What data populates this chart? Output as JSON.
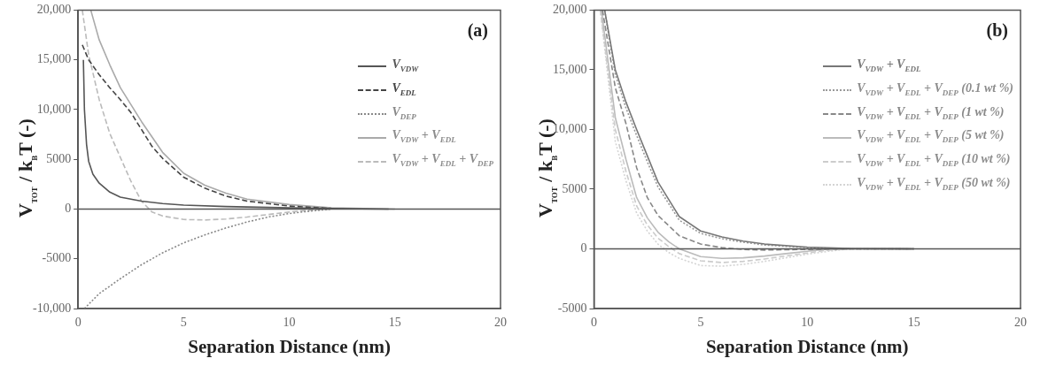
{
  "chart_data": [
    {
      "type": "line",
      "annotations": [
        "(a)"
      ],
      "xlabel": "Separation Distance (nm)",
      "ylabel": "V$_{TOT}$ / k$_{B}$T (-)",
      "xlim": [
        0,
        20
      ],
      "xticks": [
        0,
        5,
        10,
        15,
        20
      ],
      "ylim": [
        -10000,
        20000
      ],
      "yticks": [
        {
          "value": -10000,
          "label": "-10,000"
        },
        -5000,
        0,
        5000,
        {
          "value": 10000,
          "label": "10,000"
        },
        {
          "value": 15000,
          "label": "15,000"
        },
        {
          "value": 20000,
          "label": "20,000"
        }
      ],
      "legend": "top right",
      "grid": false,
      "marker": "none",
      "ref_lines": [
        {
          "axis": "y",
          "value": 0,
          "color": "#555555"
        }
      ],
      "series": [
        {
          "name": "V$_{VDW}$",
          "color": "#555555",
          "line_style": "solid",
          "x": [
            0.25,
            0.3,
            0.4,
            0.5,
            0.7,
            1,
            1.5,
            2,
            3,
            4,
            5,
            7,
            10,
            12,
            14.7
          ],
          "values": [
            15000,
            10000,
            6500,
            4800,
            3500,
            2600,
            1700,
            1200,
            800,
            550,
            400,
            250,
            120,
            50,
            0
          ]
        },
        {
          "name": "V$_{EDL}$",
          "color": "#444444",
          "line_style": "dashed",
          "x": [
            0.2,
            0.5,
            1,
            1.5,
            2,
            2.5,
            3,
            3.5,
            4,
            5,
            6,
            7,
            8,
            10,
            12
          ],
          "values": [
            16500,
            15000,
            13500,
            12200,
            11000,
            9700,
            8000,
            6300,
            5100,
            3200,
            2100,
            1300,
            800,
            300,
            60
          ]
        },
        {
          "name": "V$_{DEP}$",
          "color": "#888888",
          "line_style": "dotted",
          "x": [
            0.3,
            1,
            2,
            3,
            4,
            5,
            6,
            7,
            8,
            9,
            10,
            11,
            12
          ],
          "values": [
            -10000,
            -8500,
            -7000,
            -5600,
            -4400,
            -3400,
            -2600,
            -1900,
            -1300,
            -800,
            -450,
            -200,
            0
          ]
        },
        {
          "name": "V$_{VDW}$ + V$_{EDL}$",
          "color": "#aaaaaa",
          "line_style": "solid",
          "x": [
            0.6,
            1,
            1.5,
            2,
            3,
            4,
            5,
            6,
            7,
            8,
            10,
            12,
            15
          ],
          "values": [
            20000,
            17000,
            14500,
            12200,
            8800,
            5700,
            3600,
            2400,
            1600,
            1000,
            450,
            120,
            0
          ]
        },
        {
          "name": "V$_{VDW}$ + V$_{EDL}$ + V$_{DEP}$",
          "color": "#bbbbbb",
          "line_style": "dashed",
          "x": [
            0.2,
            0.5,
            1,
            1.5,
            2,
            2.5,
            3,
            3.5,
            4,
            5,
            6,
            7,
            8,
            9,
            10,
            11,
            12
          ],
          "values": [
            20000,
            15500,
            11000,
            7600,
            5200,
            2800,
            800,
            -300,
            -700,
            -1050,
            -1100,
            -1000,
            -800,
            -550,
            -300,
            -100,
            0
          ]
        }
      ]
    },
    {
      "type": "line",
      "annotations": [
        "(b)"
      ],
      "xlabel": "Separation Distance (nm)",
      "ylabel": "V$_{TOT}$ / k$_{B}$T (-)",
      "xlim": [
        0,
        20
      ],
      "xticks": [
        0,
        5,
        10,
        15,
        20
      ],
      "ylim": [
        -5000,
        20000
      ],
      "yticks": [
        -5000,
        0,
        5000,
        {
          "value": 10000,
          "label": "10,000"
        },
        {
          "value": 15000,
          "label": "15,000"
        },
        {
          "value": 20000,
          "label": "20,000"
        }
      ],
      "legend": "top right",
      "grid": false,
      "marker": "none",
      "ref_lines": [
        {
          "axis": "y",
          "value": 0,
          "color": "#555555"
        }
      ],
      "series": [
        {
          "name": "V$_{VDW}$ + V$_{EDL}$",
          "color": "#777777",
          "line_style": "solid",
          "x": [
            0.5,
            1,
            1.5,
            2,
            2.5,
            3,
            4,
            5,
            6,
            7,
            8,
            10,
            12,
            15
          ],
          "values": [
            20000,
            15000,
            12300,
            10000,
            7800,
            5600,
            2700,
            1500,
            1000,
            650,
            400,
            150,
            30,
            0
          ]
        },
        {
          "name": "V$_{VDW}$ + V$_{EDL}$ + V$_{DEP}$ (0.1 wt %)",
          "color": "#999999",
          "line_style": "dotted",
          "x": [
            0.5,
            1,
            1.5,
            2,
            2.5,
            3,
            4,
            5,
            6,
            7,
            8,
            10,
            12,
            15
          ],
          "values": [
            20000,
            14600,
            11800,
            9500,
            7300,
            5200,
            2400,
            1300,
            850,
            550,
            320,
            100,
            0,
            0
          ]
        },
        {
          "name": "V$_{VDW}$ + V$_{EDL}$ + V$_{DEP}$ (1 wt %)",
          "color": "#888888",
          "line_style": "dashed",
          "x": [
            0.4,
            1,
            1.5,
            2,
            2.5,
            3,
            4,
            5,
            6,
            7,
            8,
            10,
            12,
            15
          ],
          "values": [
            20000,
            13500,
            10500,
            6800,
            4300,
            2800,
            1100,
            400,
            100,
            -50,
            -100,
            -50,
            0,
            0
          ]
        },
        {
          "name": "V$_{VDW}$ + V$_{EDL}$ + V$_{DEP}$ (5 wt %)",
          "color": "#bbbbbb",
          "line_style": "solid",
          "x": [
            0.35,
            1,
            1.5,
            2,
            2.5,
            3,
            3.5,
            4,
            5,
            6,
            7,
            8,
            9,
            10,
            11,
            12,
            15
          ],
          "values": [
            20000,
            11000,
            7500,
            4300,
            2600,
            1400,
            600,
            0,
            -650,
            -800,
            -750,
            -600,
            -400,
            -200,
            0,
            50,
            0
          ]
        },
        {
          "name": "V$_{VDW}$ + V$_{EDL}$ + V$_{DEP}$ (10 wt %)",
          "color": "#cccccc",
          "line_style": "dashed",
          "x": [
            0.3,
            1,
            1.5,
            2,
            2.5,
            3,
            3.5,
            4,
            5,
            6,
            7,
            8,
            9,
            10,
            11,
            12,
            15
          ],
          "values": [
            20000,
            10000,
            6500,
            3600,
            2000,
            900,
            200,
            -400,
            -1000,
            -1150,
            -1050,
            -850,
            -600,
            -350,
            -100,
            0,
            0
          ]
        },
        {
          "name": "V$_{VDW}$ + V$_{EDL}$ + V$_{DEP}$ (50 wt %)",
          "color": "#d4d4d4",
          "line_style": "dotted",
          "x": [
            0.3,
            1,
            1.5,
            2,
            2.5,
            3,
            3.5,
            4,
            5,
            6,
            7,
            8,
            9,
            10,
            11,
            12,
            15
          ],
          "values": [
            20000,
            9000,
            5700,
            3000,
            1500,
            400,
            -300,
            -800,
            -1400,
            -1450,
            -1300,
            -1050,
            -750,
            -450,
            -200,
            0,
            0
          ]
        }
      ]
    }
  ]
}
